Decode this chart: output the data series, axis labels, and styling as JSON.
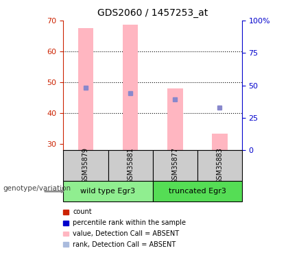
{
  "title": "GDS2060 / 1457253_at",
  "samples": [
    "GSM35879",
    "GSM35881",
    "GSM35877",
    "GSM35883"
  ],
  "ylim_left": [
    28,
    70
  ],
  "ylim_right": [
    0,
    100
  ],
  "yticks_left": [
    30,
    40,
    50,
    60,
    70
  ],
  "yticks_right": [
    0,
    25,
    50,
    75,
    100
  ],
  "ytick_right_labels": [
    "0",
    "25",
    "50",
    "75",
    "100%"
  ],
  "bar_bottom": 28,
  "bar_values": [
    67.5,
    68.7,
    48.0,
    33.5
  ],
  "bar_color": "#FFB6C1",
  "rank_markers": [
    48.2,
    46.5,
    44.5,
    41.8
  ],
  "rank_color": "#8888CC",
  "left_axis_color": "#CC2200",
  "right_axis_color": "#0000CC",
  "group_names": [
    "wild type Egr3",
    "truncated Egr3"
  ],
  "group_color_1": "#90EE90",
  "group_color_2": "#55DD55",
  "group_label": "genotype/variation",
  "legend_labels": [
    "count",
    "percentile rank within the sample",
    "value, Detection Call = ABSENT",
    "rank, Detection Call = ABSENT"
  ],
  "legend_colors": [
    "#CC2200",
    "#0000CC",
    "#FFB6C1",
    "#AABBDD"
  ]
}
